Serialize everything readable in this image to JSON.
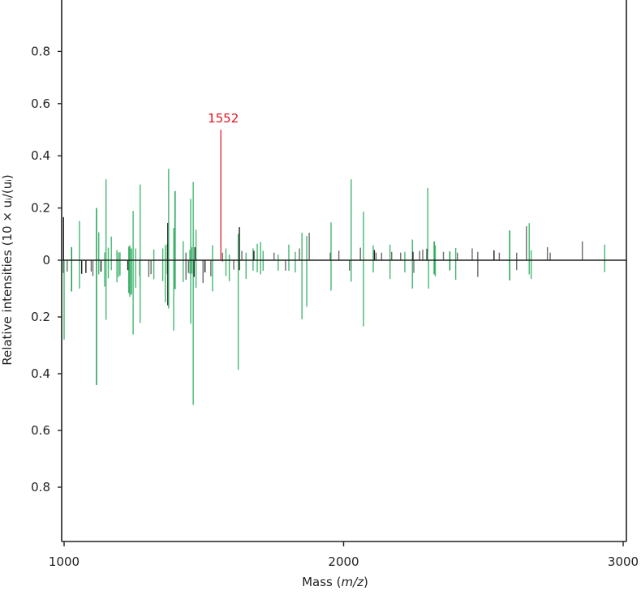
{
  "chart_data": {
    "type": "bar",
    "subtype": "mirror-spectrum",
    "title": "",
    "xlabel": "Mass",
    "xlabel_italic": "m/z",
    "ylabel": "Relative intensities (10 × uᵢ/(uᵢ)",
    "xlim": [
      990,
      3010
    ],
    "ylim_up": [
      0,
      1.0
    ],
    "ylim_down": [
      0,
      1.0
    ],
    "x_ticks": [
      1000,
      2000,
      3000
    ],
    "y_ticks_up": [
      "0",
      "0.2",
      "0.4",
      "0.6",
      "0.8"
    ],
    "y_ticks_down": [
      "0.2",
      "0.4",
      "0.6",
      "0.8"
    ],
    "annotation": {
      "label": "1552",
      "mass": 1552,
      "value": 0.5
    },
    "colors": {
      "g": "#45b872",
      "dg": "#0f9a43",
      "k": "#1e1e1e",
      "gr": "#6b6b6b",
      "r": "#e0141e",
      "axis": "#222222"
    },
    "peaks": [
      [
        998,
        "k",
        0.165,
        0.045
      ],
      [
        1000,
        "g",
        0,
        0.28
      ],
      [
        1011,
        "gr",
        0,
        0.04
      ],
      [
        1027,
        "dg",
        0.05,
        0.11
      ],
      [
        1055,
        "g",
        0.15,
        0.1
      ],
      [
        1063,
        "k",
        0,
        0.048
      ],
      [
        1078,
        "k",
        0,
        0.045
      ],
      [
        1097,
        "gr",
        0,
        0.04
      ],
      [
        1103,
        "gr",
        0,
        0.056
      ],
      [
        1116,
        "dg",
        0.2,
        0.44
      ],
      [
        1124,
        "g",
        0.107,
        0.05
      ],
      [
        1132,
        "k",
        0,
        0.04
      ],
      [
        1145,
        "g",
        0.03,
        0.093
      ],
      [
        1150,
        "g",
        0.31,
        0.21
      ],
      [
        1158,
        "g",
        0.048,
        0.064
      ],
      [
        1169,
        "g",
        0.091,
        0.035
      ],
      [
        1189,
        "g",
        0.039,
        0.078
      ],
      [
        1195,
        "g",
        0.03,
        0.059
      ],
      [
        1200,
        "g",
        0.03,
        0.054
      ],
      [
        1228,
        "k",
        0,
        0.035
      ],
      [
        1232,
        "dg",
        0.052,
        0.116
      ],
      [
        1235,
        "g",
        0.057,
        0.129
      ],
      [
        1240,
        "dg",
        0.045,
        0.121
      ],
      [
        1247,
        "g",
        0.189,
        0.262
      ],
      [
        1256,
        "g",
        0.045,
        0.097
      ],
      [
        1271,
        "k",
        0,
        0.056
      ],
      [
        1272,
        "g",
        0.29,
        0.221
      ],
      [
        1303,
        "gr",
        0,
        0.059
      ],
      [
        1311,
        "gr",
        0,
        0.049
      ],
      [
        1321,
        "g",
        0.041,
        0.067
      ],
      [
        1353,
        "g",
        0.045,
        0.074
      ],
      [
        1362,
        "g",
        0.058,
        0.148
      ],
      [
        1369,
        "g",
        0.062,
        0.048
      ],
      [
        1371,
        "k",
        0.143,
        0.159
      ],
      [
        1374,
        "g",
        0.35,
        0.17
      ],
      [
        1392,
        "g",
        0.124,
        0.248
      ],
      [
        1397,
        "dg",
        0.265,
        0.102
      ],
      [
        1426,
        "g",
        0.073,
        0.077
      ],
      [
        1436,
        "gr",
        0.029,
        0.069
      ],
      [
        1445,
        "gr",
        0,
        0.045
      ],
      [
        1450,
        "g",
        0.039,
        0.048
      ],
      [
        1453,
        "g",
        0.235,
        0.224
      ],
      [
        1457,
        "g",
        0.05,
        0.047
      ],
      [
        1462,
        "g",
        0.3,
        0.51
      ],
      [
        1465,
        "k",
        0,
        0.059
      ],
      [
        1468,
        "k",
        0.05,
        0
      ],
      [
        1472,
        "g",
        0.117,
        0.097
      ],
      [
        1497,
        "gr",
        0,
        0.08
      ],
      [
        1504,
        "k",
        0,
        0.043
      ],
      [
        1525,
        "gr",
        0,
        0.057
      ],
      [
        1531,
        "g",
        0.057,
        0.11
      ],
      [
        1567,
        "gr",
        0.029,
        0.005
      ],
      [
        1579,
        "g",
        0.045,
        0.056
      ],
      [
        1591,
        "g",
        0.022,
        0.074
      ],
      [
        1607,
        "gr",
        0,
        0.033
      ],
      [
        1623,
        "g",
        0.101,
        0.386
      ],
      [
        1627,
        "k",
        0.127,
        0.035
      ],
      [
        1636,
        "gr",
        0.036,
        0
      ],
      [
        1651,
        "g",
        0.029,
        0.066
      ],
      [
        1676,
        "g",
        0.045,
        0.037
      ],
      [
        1679,
        "k",
        0.036,
        0
      ],
      [
        1691,
        "g",
        0.063,
        0.043
      ],
      [
        1703,
        "g",
        0.07,
        0.05
      ],
      [
        1712,
        "g",
        0.036,
        0.037
      ],
      [
        1751,
        "gr",
        0.029,
        0
      ],
      [
        1766,
        "g",
        0.022,
        0.037
      ],
      [
        1792,
        "gr",
        0,
        0.037
      ],
      [
        1804,
        "g",
        0.06,
        0.037
      ],
      [
        1827,
        "g",
        0.032,
        0.043
      ],
      [
        1842,
        "gr",
        0.045,
        0
      ],
      [
        1851,
        "g",
        0.105,
        0.208
      ],
      [
        1868,
        "g",
        0.093,
        0.164
      ],
      [
        1877,
        "gr",
        0.105,
        0
      ],
      [
        1953,
        "k",
        0.029,
        0
      ],
      [
        1955,
        "g",
        0.145,
        0.107
      ],
      [
        1983,
        "gr",
        0.036,
        0
      ],
      [
        2021,
        "gr",
        0,
        0.037
      ],
      [
        2027,
        "g",
        0.31,
        0.076
      ],
      [
        2060,
        "gr",
        0.048,
        0
      ],
      [
        2071,
        "g",
        0.186,
        0.233
      ],
      [
        2106,
        "g",
        0.057,
        0.043
      ],
      [
        2110,
        "k",
        0.039,
        0
      ],
      [
        2116,
        "gr",
        0.029,
        0
      ],
      [
        2136,
        "gr",
        0.029,
        0
      ],
      [
        2166,
        "g",
        0.06,
        0.066
      ],
      [
        2172,
        "gr",
        0.032,
        0
      ],
      [
        2204,
        "gr",
        0.029,
        0
      ],
      [
        2219,
        "g",
        0.032,
        0.043
      ],
      [
        2246,
        "g",
        0.079,
        0.1
      ],
      [
        2248,
        "k",
        0.032,
        0
      ],
      [
        2251,
        "gr",
        0,
        0.045
      ],
      [
        2272,
        "gr",
        0.036,
        0
      ],
      [
        2283,
        "gr",
        0.041,
        0
      ],
      [
        2298,
        "k",
        0.044,
        0
      ],
      [
        2301,
        "g",
        0.277,
        0
      ],
      [
        2304,
        "g",
        0,
        0.1
      ],
      [
        2324,
        "dg",
        0.072,
        0.05
      ],
      [
        2328,
        "g",
        0.057,
        0.057
      ],
      [
        2357,
        "gr",
        0.032,
        0
      ],
      [
        2380,
        "dg",
        0.034,
        0.036
      ],
      [
        2401,
        "g",
        0.047,
        0.069
      ],
      [
        2407,
        "gr",
        0.029,
        0
      ],
      [
        2460,
        "gr",
        0.045,
        0
      ],
      [
        2480,
        "gr",
        0.032,
        0.059
      ],
      [
        2538,
        "k",
        0.038,
        0
      ],
      [
        2557,
        "gr",
        0.029,
        0
      ],
      [
        2594,
        "dg",
        0.114,
        0.071
      ],
      [
        2619,
        "gr",
        0.029,
        0.035
      ],
      [
        2654,
        "gr",
        0.13,
        0
      ],
      [
        2664,
        "g",
        0.142,
        0.05
      ],
      [
        2671,
        "g",
        0.038,
        0.066
      ],
      [
        2729,
        "gr",
        0.05,
        0
      ],
      [
        2739,
        "gr",
        0.029,
        0
      ],
      [
        2854,
        "gr",
        0.072,
        0
      ],
      [
        2934,
        "g",
        0.06,
        0.042
      ]
    ]
  }
}
